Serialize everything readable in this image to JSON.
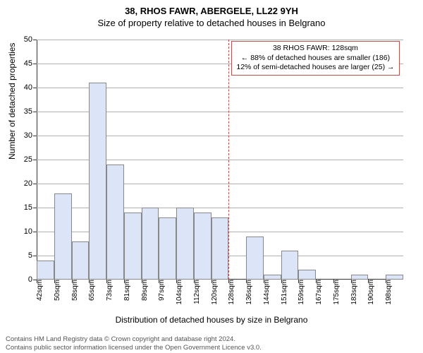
{
  "titles": {
    "line1": "38, RHOS FAWR, ABERGELE, LL22 9YH",
    "line2": "Size of property relative to detached houses in Belgrano"
  },
  "axes": {
    "ylabel": "Number of detached properties",
    "xlabel": "Distribution of detached houses by size in Belgrano",
    "ymin": 0,
    "ymax": 50,
    "ytick_step": 5,
    "label_fontsize": 12,
    "tick_fontsize": 11
  },
  "chart": {
    "type": "histogram",
    "bar_color": "#dbe5f7",
    "bar_border": "#888888",
    "grid_color": "#b0b0b0",
    "background_color": "#ffffff",
    "x_categories": [
      "42sqm",
      "50sqm",
      "58sqm",
      "65sqm",
      "73sqm",
      "81sqm",
      "89sqm",
      "97sqm",
      "104sqm",
      "112sqm",
      "120sqm",
      "128sqm",
      "136sqm",
      "144sqm",
      "151sqm",
      "159sqm",
      "167sqm",
      "175sqm",
      "183sqm",
      "190sqm",
      "198sqm"
    ],
    "values": [
      4,
      18,
      8,
      41,
      24,
      14,
      15,
      13,
      15,
      14,
      13,
      0,
      9,
      1,
      6,
      2,
      0,
      0,
      1,
      0,
      1
    ]
  },
  "reference": {
    "x_index": 11,
    "line_color": "#c0504d",
    "box_border": "#c0504d",
    "lines": [
      "38 RHOS FAWR: 128sqm",
      "← 88% of detached houses are smaller (186)",
      "12% of semi-detached houses are larger (25) →"
    ]
  },
  "footer": {
    "line1": "Contains HM Land Registry data © Crown copyright and database right 2024.",
    "line2": "Contains public sector information licensed under the Open Government Licence v3.0."
  }
}
